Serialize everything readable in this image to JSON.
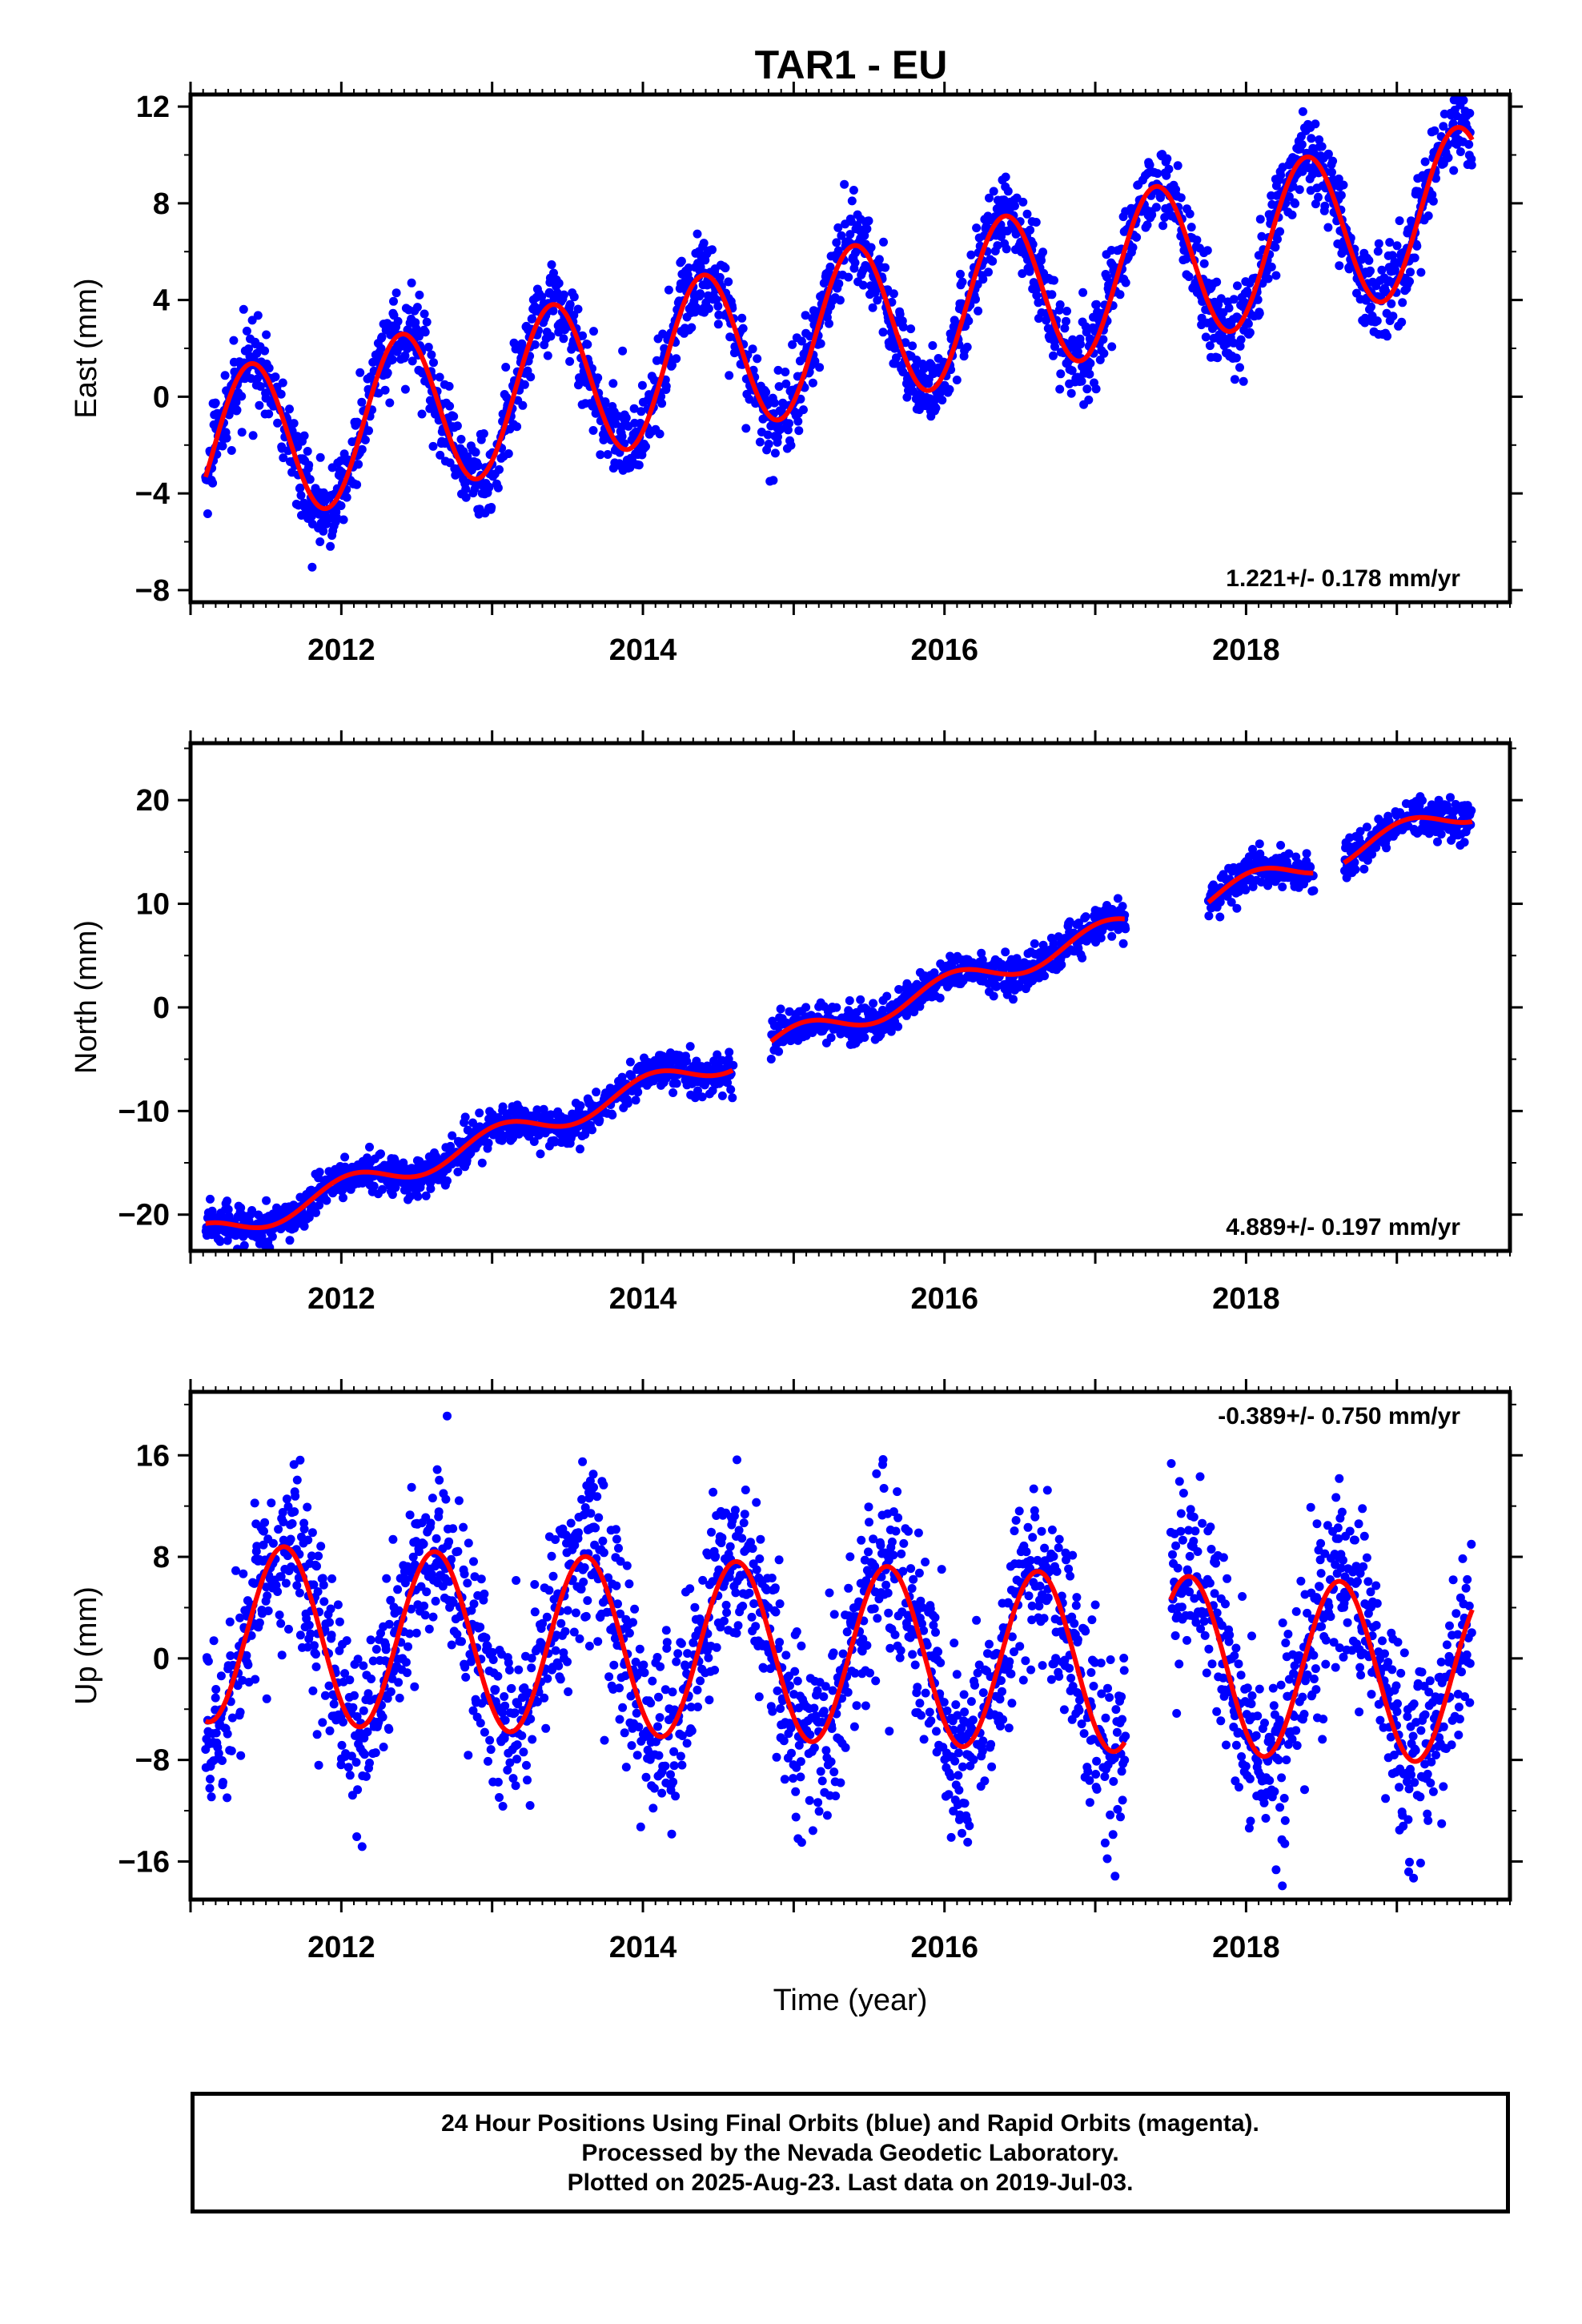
{
  "title": "TAR1 - EU",
  "colors": {
    "data": "#0000ff",
    "model": "#ff0000",
    "frame": "#000000"
  },
  "chart_data": [
    {
      "type": "scatter",
      "id": "east",
      "ylabel": "East (mm)",
      "xlim": [
        2011.0,
        2019.75
      ],
      "ylim": [
        -8.5,
        12.5
      ],
      "yticks": [
        -8,
        -4,
        0,
        4,
        8,
        12
      ],
      "yticklabels": [
        "−8",
        "−4",
        "0",
        "4",
        "8",
        "12"
      ],
      "xticks": [
        2012,
        2014,
        2016,
        2018
      ],
      "xticklabels": [
        "2012",
        "2014",
        "2016",
        "2018"
      ],
      "rate_label": "1.221+/- 0.178 mm/yr",
      "rate_position": "bottom-right",
      "data_start": 2011.1,
      "data_end": 2019.5,
      "model": {
        "offset": -2.3,
        "rate": 1.221,
        "amplitude": 3.3,
        "peak_phase": 0.4
      },
      "scatter_sigma": 0.85,
      "gaps": []
    },
    {
      "type": "scatter",
      "id": "north",
      "ylabel": "North (mm)",
      "xlim": [
        2011.0,
        2019.75
      ],
      "ylim": [
        -23.5,
        25.5
      ],
      "yticks": [
        -20,
        -10,
        0,
        10,
        20
      ],
      "yticklabels": [
        "−20",
        "−10",
        "0",
        "10",
        "20"
      ],
      "xticks": [
        2012,
        2014,
        2016,
        2018
      ],
      "xticklabels": [
        "2012",
        "2014",
        "2016",
        "2018"
      ],
      "rate_label": "4.889+/- 0.197 mm/yr",
      "rate_position": "bottom-right",
      "data_start": 2011.1,
      "data_end": 2019.5,
      "model": {
        "offset": -22.0,
        "rate": 4.889,
        "amplitude": 1.2,
        "peak_phase": 0.05
      },
      "scatter_sigma": 0.9,
      "gaps": [
        [
          2014.6,
          2014.85
        ],
        [
          2017.2,
          2017.75
        ],
        [
          2018.45,
          2018.65
        ]
      ]
    },
    {
      "type": "scatter",
      "id": "up",
      "ylabel": "Up (mm)",
      "xlabel": "Time (year)",
      "xlim": [
        2011.0,
        2019.75
      ],
      "ylim": [
        -19,
        21
      ],
      "yticks": [
        -16,
        -8,
        0,
        8,
        16
      ],
      "yticklabels": [
        "−16",
        "−8",
        "0",
        "8",
        "16"
      ],
      "xticks": [
        2012,
        2014,
        2016,
        2018
      ],
      "xticklabels": [
        "2012",
        "2014",
        "2016",
        "2018"
      ],
      "rate_label": "-0.389+/- 0.750 mm/yr",
      "rate_position": "top-right",
      "data_start": 2011.1,
      "data_end": 2019.5,
      "model": {
        "offset": 2.0,
        "rate": -0.389,
        "amplitude": 7.0,
        "peak_phase": 0.62
      },
      "scatter_sigma": 3.6,
      "gaps": [
        [
          2017.2,
          2017.5
        ]
      ]
    }
  ],
  "footer": {
    "line1": "24 Hour Positions Using Final Orbits (blue) and Rapid Orbits (magenta).",
    "line2": "Processed by the Nevada Geodetic Laboratory.",
    "line3": "Plotted on 2025-Aug-23. Last data on 2019-Jul-03."
  }
}
